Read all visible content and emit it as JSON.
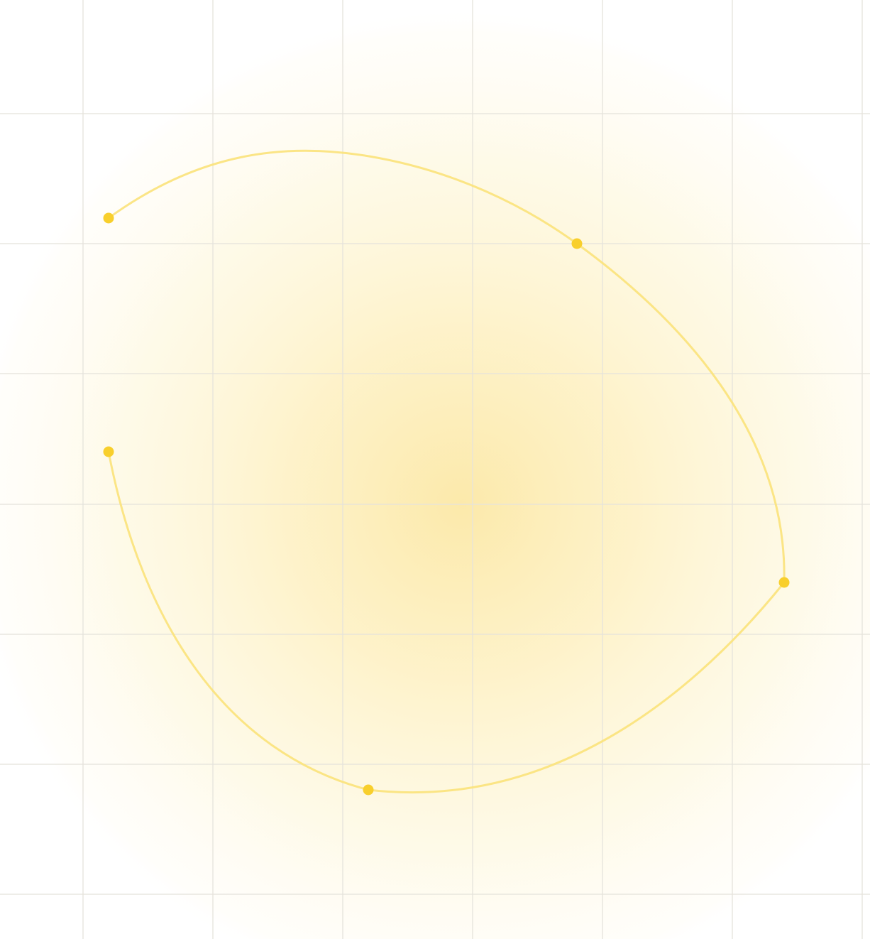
{
  "colors": {
    "background": "#ffffff",
    "grid_line": "#e6e3dc",
    "glow_center": "#fce8a6",
    "curve_stroke": "#fbe27a",
    "anchor_point": "#f8cf2c"
  },
  "diagram": {
    "kind": "bezier-curve-paths",
    "grid": true,
    "path_count": 2,
    "anchor_point_count": 5
  }
}
